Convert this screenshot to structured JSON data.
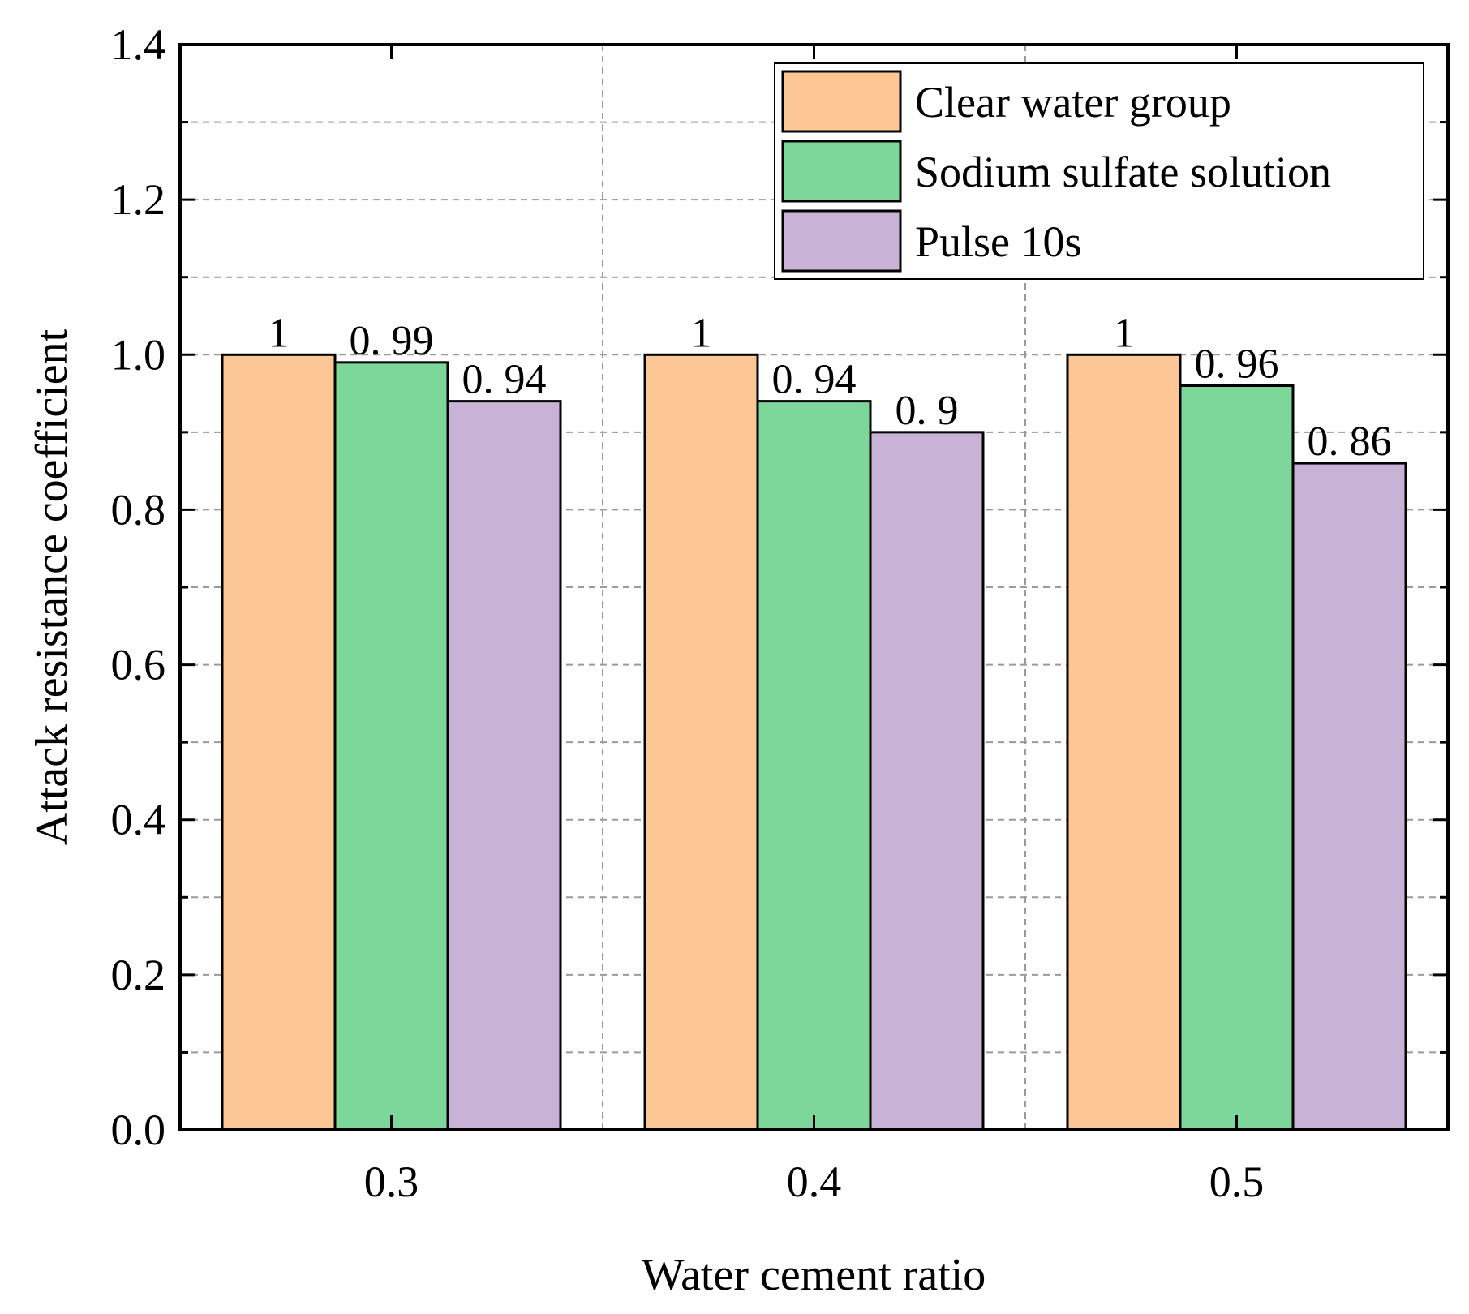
{
  "chart_data": {
    "type": "bar",
    "title": "",
    "xlabel": "Water cement ratio",
    "ylabel": "Attack resistance coefficient",
    "categories": [
      "0.3",
      "0.4",
      "0.5"
    ],
    "ylim": [
      0,
      1.4
    ],
    "yticks": [
      0.0,
      0.2,
      0.4,
      0.6,
      0.8,
      1.0,
      1.2,
      1.4
    ],
    "ytick_labels": [
      "0.0",
      "0.2",
      "0.4",
      "0.6",
      "0.8",
      "1.0",
      "1.2",
      "1.4"
    ],
    "grid": true,
    "legend_position": "top-right",
    "series": [
      {
        "name": "Clear water group",
        "color": "#FDC795",
        "values": [
          1,
          1,
          1
        ],
        "labels": [
          "1",
          "1",
          "1"
        ]
      },
      {
        "name": "Sodium sulfate solution",
        "color": "#7ED79A",
        "values": [
          0.99,
          0.94,
          0.96
        ],
        "labels": [
          "0. 99",
          "0. 94",
          "0. 96"
        ]
      },
      {
        "name": "Pulse 10s",
        "color": "#C8B3D7",
        "values": [
          0.94,
          0.9,
          0.86
        ],
        "labels": [
          "0. 94",
          "0. 9",
          "0. 86"
        ]
      }
    ]
  }
}
